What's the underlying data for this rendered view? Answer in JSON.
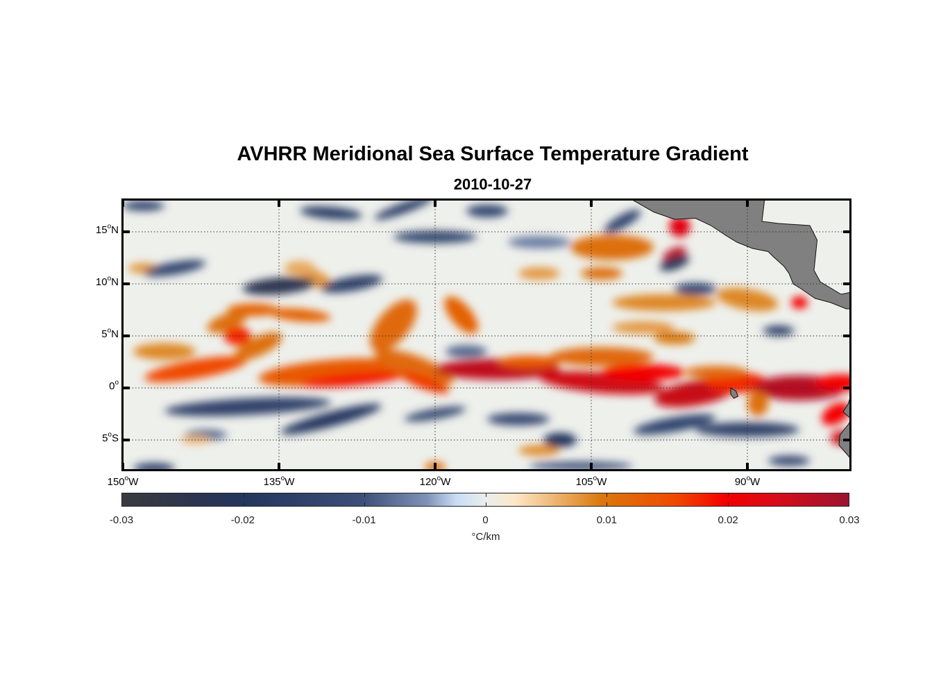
{
  "chart_data": {
    "type": "heatmap",
    "title": "AVHRR Meridional Sea Surface Temperature Gradient",
    "subtitle": "2010-10-27",
    "x_ticks": [
      {
        "value": -150,
        "num": "150",
        "hem": "W"
      },
      {
        "value": -135,
        "num": "135",
        "hem": "W"
      },
      {
        "value": -120,
        "num": "120",
        "hem": "W"
      },
      {
        "value": -105,
        "num": "105",
        "hem": "W"
      },
      {
        "value": -90,
        "num": "90",
        "hem": "W"
      }
    ],
    "y_ticks": [
      {
        "value": 15,
        "num": "15",
        "hem": "N"
      },
      {
        "value": 10,
        "num": "10",
        "hem": "N"
      },
      {
        "value": 5,
        "num": "5",
        "hem": "N"
      },
      {
        "value": 0,
        "num": "0",
        "hem": ""
      },
      {
        "value": -5,
        "num": "5",
        "hem": "S"
      }
    ],
    "degree_symbol": "o",
    "xlim": [
      -150,
      -79.5
    ],
    "ylim": [
      -8,
      18
    ],
    "grid": "dotted",
    "colorbar": {
      "ticks": [
        "-0.03",
        "-0.02",
        "-0.01",
        "0",
        "0.01",
        "0.02",
        "0.03"
      ],
      "range": [
        -0.03,
        0.03
      ],
      "label": "°C/km",
      "placement": "bottom",
      "colors": [
        "#3a3b3f",
        "#24365e",
        "#c9dcf5",
        "#e9eeec",
        "#d9780c",
        "#f40000",
        "#9b1431"
      ]
    },
    "land_color": "#808080"
  }
}
